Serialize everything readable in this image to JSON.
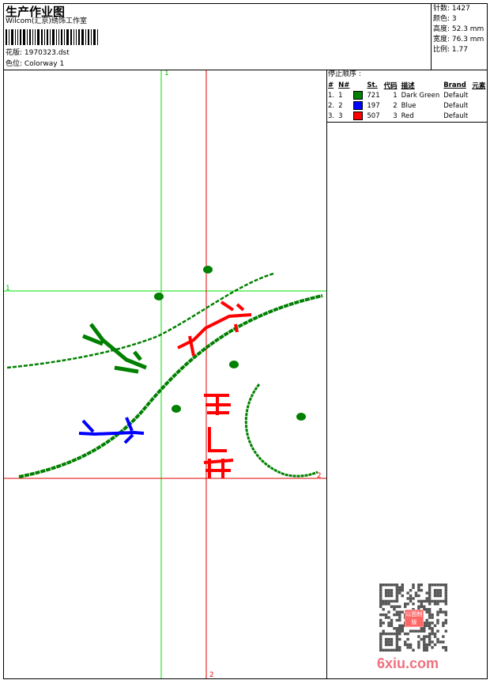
{
  "header": {
    "title": "生产作业图",
    "company": "Wilcom(汇京)绣饰工作室",
    "design_label": "花版: 1970323.dst",
    "colorway_label": "色位: Colorway 1"
  },
  "info": {
    "stitches": "针数: 1427",
    "colors": "颜色: 3",
    "height": "高度: 52.3 mm",
    "width": "宽度: 76.3 mm",
    "ratio": "比例: 1.77"
  },
  "stop_sequence": {
    "title": "停止顺序 :",
    "columns": [
      "#",
      "N#",
      "",
      "St.",
      "代码",
      "描述",
      "Brand",
      "元素"
    ],
    "rows": [
      {
        "num": "1.",
        "n": "1",
        "color": "#008000",
        "st": "721",
        "code": "1",
        "desc": "Dark Green",
        "brand": "Default"
      },
      {
        "num": "2.",
        "n": "2",
        "color": "#0000ff",
        "st": "197",
        "code": "2",
        "desc": "Blue",
        "brand": "Default"
      },
      {
        "num": "3.",
        "n": "3",
        "color": "#ff0000",
        "st": "507",
        "code": "3",
        "desc": "Red",
        "brand": "Default"
      }
    ]
  },
  "guides": {
    "green_label": "1",
    "red_label": "2",
    "green_color": "#00e000",
    "red_color": "#e00000"
  },
  "watermark": {
    "text": "6xiu.com",
    "stamp": "以图制版"
  }
}
